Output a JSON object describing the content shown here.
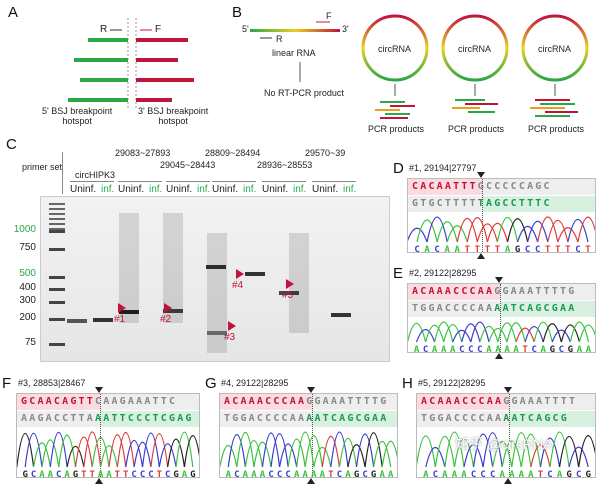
{
  "panelA": {
    "label": "A",
    "R": "R",
    "F": "F",
    "left_caption": "5' BSJ breakpoint\nhotspot",
    "right_caption": "3' BSJ breakpoint\nhotspot"
  },
  "panelB": {
    "label": "B",
    "five": "5'",
    "three": "3'",
    "F": "F",
    "R": "R",
    "linear": "linear RNA",
    "no_product": "No RT-PCR product",
    "circ": "circRNA",
    "pcr": "PCR products"
  },
  "panelC": {
    "label": "C",
    "primer_set": "primer set",
    "sets": [
      "circHIPK3",
      "29083~27893",
      "29045~28443",
      "28809~28494",
      "28936~28553",
      "29570~39"
    ],
    "uninf": "Uninf.",
    "inf": "inf.",
    "ladder": [
      {
        "v": "1000",
        "green": true
      },
      {
        "v": "750"
      },
      {
        "v": "500",
        "green": true
      },
      {
        "v": "400"
      },
      {
        "v": "300"
      },
      {
        "v": "200"
      },
      {
        "v": "75"
      }
    ],
    "bands": [
      "#1",
      "#2",
      "#3",
      "#4",
      "#5"
    ]
  },
  "seqs": [
    {
      "label": "D",
      "title": "#1, 29194|27797",
      "top": [
        "CACAATTT",
        "GCCCCCAGC"
      ],
      "bottom": [
        "GTGCTTTT",
        "TAGCCTTTC"
      ],
      "trace": "CACAATTTTAGCCTTTCT"
    },
    {
      "label": "E",
      "title": "#2, 29122|28295",
      "top": [
        "ACAAACCCAA",
        "GGAAATTTTG"
      ],
      "bottom": [
        "TGGACCCCAA",
        "AATCAGCGAA"
      ],
      "trace": "ACAAACCCAAAATCAGCGAA"
    },
    {
      "label": "F",
      "title": "#3, 28853|28467",
      "top": [
        "GCAACAGTT",
        "CAAGAAATTC"
      ],
      "bottom": [
        "AAGACCTTA",
        "AATTCCCTCGAG"
      ],
      "trace": "GCAACAGTTAATTCCCTCGAG"
    },
    {
      "label": "G",
      "title": "#4, 29122|28295",
      "top": [
        "ACAAACCCAA",
        "GGAAATTTTG"
      ],
      "bottom": [
        "TGGACCCCAA",
        "AATCAGCGAA"
      ],
      "trace": "ACAAACCCAAAATCAGCGAA"
    },
    {
      "label": "H",
      "title": "#5, 29122|28295",
      "top": [
        "ACAAACCCAA",
        "GGAAATTTT"
      ],
      "bottom": [
        "TGGACCCCAA",
        "AATCAGCG"
      ],
      "trace": "ACAAACCCAAAATCAGCG"
    }
  ],
  "watermark": "知乎 @circRNA",
  "colors": {
    "red": "#c0143c",
    "green": "#2aa845",
    "A": "#39c23c",
    "C": "#3a3ad0",
    "G": "#222222",
    "T": "#e03a3a"
  }
}
